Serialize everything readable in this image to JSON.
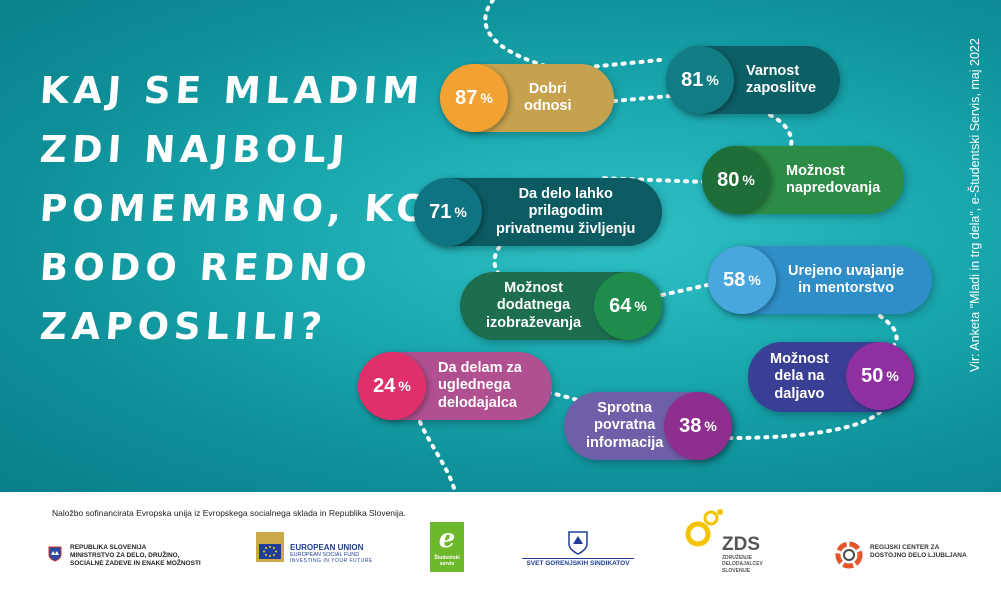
{
  "headline": [
    "KAJ SE MLADIM",
    "ZDI NAJBOLJ",
    "POMEMBNO, KO SE",
    "BODO REDNO",
    "ZAPOSLILI?"
  ],
  "source": "Vir: Anketa \"Mladi in trg dela\", e-Študentski Servis, maj 2022",
  "items": [
    {
      "value": "87",
      "unit": "%",
      "label": "Dobri\nodnosi"
    },
    {
      "value": "81",
      "unit": "%",
      "label": "Varnost\nzaposlitve"
    },
    {
      "value": "80",
      "unit": "%",
      "label": "Možnost\nnapredovanja"
    },
    {
      "value": "71",
      "unit": "%",
      "label": "Da delo lahko\nprilagodim\nprivatnemu življenju"
    },
    {
      "value": "64",
      "unit": "%",
      "label": "Možnost\ndodatnega\nizobraževanja"
    },
    {
      "value": "58",
      "unit": "%",
      "label": "Urejeno uvajanje\nin mentorstvo"
    },
    {
      "value": "50",
      "unit": "%",
      "label": "Možnost\ndela na\ndaljavo"
    },
    {
      "value": "38",
      "unit": "%",
      "label": "Sprotna\npovratna\ninformacija"
    },
    {
      "value": "24",
      "unit": "%",
      "label": "Da delam za\nuglednega\ndelodajalca"
    }
  ],
  "colors": {
    "i0": {
      "pill": "#c7a24e",
      "circle": "#f2a233"
    },
    "i1": {
      "pill": "#0d5f66",
      "circle": "#127c84"
    },
    "i2": {
      "pill": "#2c8b45",
      "circle": "#1f6e38"
    },
    "i3": {
      "pill": "#0c5b63",
      "circle": "#0f7481"
    },
    "i4": {
      "pill": "#1d6d4f",
      "circle": "#1e8c4b"
    },
    "i5": {
      "pill": "#2f8ec8",
      "circle": "#4aa7de"
    },
    "i6": {
      "pill": "#3a3f96",
      "circle": "#8f2fa0"
    },
    "i7": {
      "pill": "#6e5fa8",
      "circle": "#8e2e8e"
    },
    "i8": {
      "pill": "#b05090",
      "circle": "#e0306c"
    }
  },
  "footer": {
    "funding": "Naložbo sofinancirata Evropska unija iz Evropskega socialnega sklada in Republika Slovenija.",
    "rs": [
      "REPUBLIKA SLOVENIJA",
      "MINISTRSTVO ZA DELO, DRUŽINO,",
      "SOCIALNE ZADEVE IN ENAKE MOŽNOSTI"
    ],
    "eu": [
      "EUROPEAN UNION",
      "EUROPEAN SOCIAL FUND",
      "INVESTING IN YOUR FUTURE"
    ],
    "studentski": "Študentski servis",
    "svet": "SVET GORENJSKIH SINDIKATOV",
    "zds": {
      "title": "ZDS",
      "sub": [
        "ZDRUŽENJE",
        "DELODAJALCEV",
        "SLOVENIJE"
      ]
    },
    "regijski": [
      "REGIJSKI CENTER ZA",
      "DOSTOJNO DELO LJUBLJANA"
    ]
  }
}
